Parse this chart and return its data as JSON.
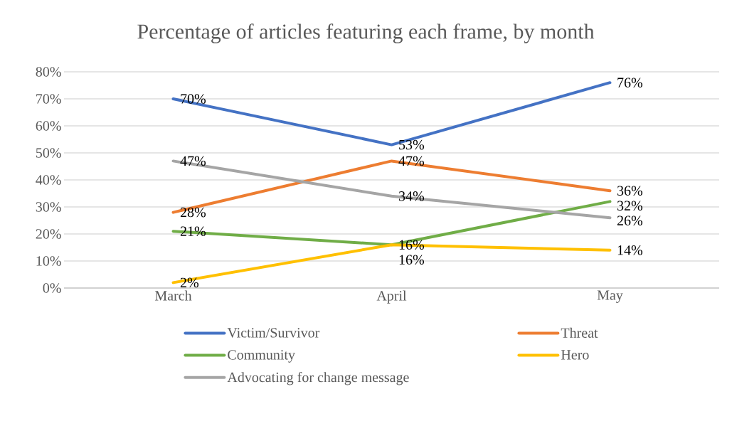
{
  "chart_data": {
    "type": "line",
    "title": "Percentage of articles featuring each frame, by month",
    "categories": [
      "March",
      "April",
      "May"
    ],
    "series": [
      {
        "name": "Victim/Survivor",
        "color": "#4472c4",
        "values": [
          70,
          53,
          76
        ],
        "value_labels": [
          "70%",
          "53%",
          "76%"
        ]
      },
      {
        "name": "Threat",
        "color": "#ed7d31",
        "values": [
          28,
          47,
          36
        ],
        "value_labels": [
          "28%",
          "47%",
          "36%"
        ]
      },
      {
        "name": "Community",
        "color": "#70ad47",
        "values": [
          21,
          16,
          32
        ],
        "value_labels": [
          "21%",
          "16%",
          "32%"
        ]
      },
      {
        "name": "Hero",
        "color": "#ffc000",
        "values": [
          2,
          16,
          14
        ],
        "value_labels": [
          "2%",
          "16%",
          "14%"
        ]
      },
      {
        "name": "Advocating for change message",
        "color": "#a5a5a5",
        "values": [
          47,
          34,
          26
        ],
        "value_labels": [
          "47%",
          "34%",
          "26%"
        ]
      }
    ],
    "ylim": [
      0,
      80
    ],
    "yticks": [
      {
        "value": 0,
        "label": "0%"
      },
      {
        "value": 10,
        "label": "10%"
      },
      {
        "value": 20,
        "label": "20%"
      },
      {
        "value": 30,
        "label": "30%"
      },
      {
        "value": 40,
        "label": "40%"
      },
      {
        "value": 50,
        "label": "50%"
      },
      {
        "value": 60,
        "label": "60%"
      },
      {
        "value": 70,
        "label": "70%"
      },
      {
        "value": 80,
        "label": "80%"
      }
    ],
    "grid": "y",
    "legend": "bottom",
    "marker": "none",
    "line_style": "solid"
  }
}
